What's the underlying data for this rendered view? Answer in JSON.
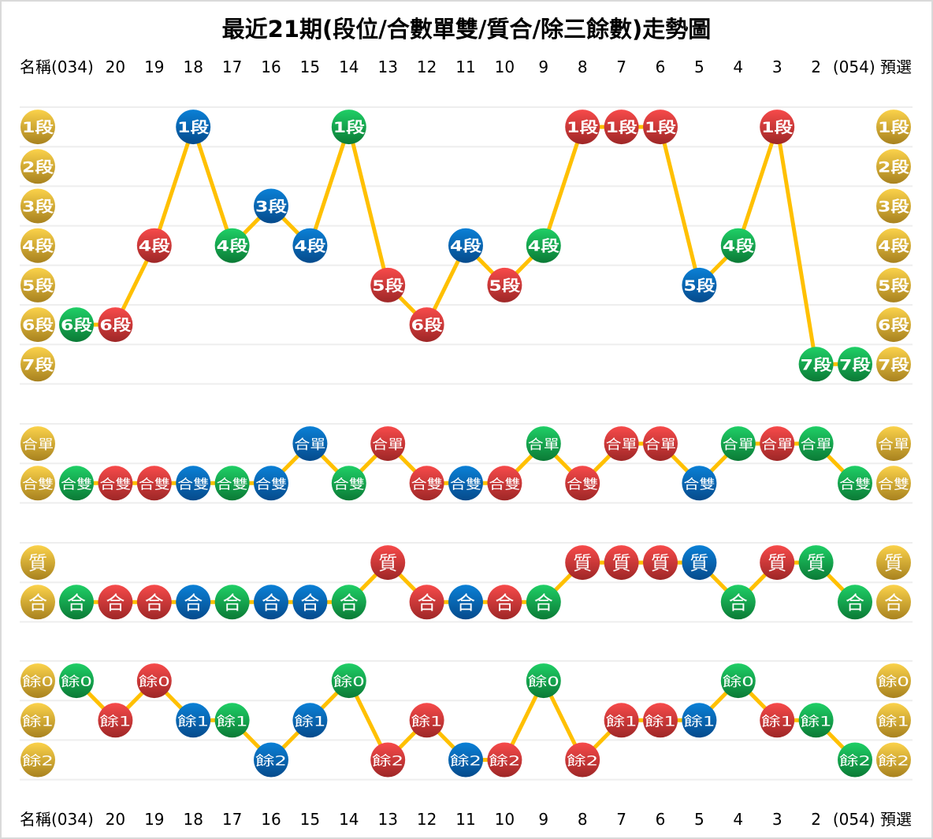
{
  "chart_data": {
    "type": "trend-chart",
    "title": "最近21期(段位/合數單雙/質合/除三餘數)走勢圖",
    "header_left": "名稱(034)",
    "header_right": "(054) 預選",
    "period_labels": [
      "20",
      "19",
      "18",
      "17",
      "16",
      "15",
      "14",
      "13",
      "12",
      "11",
      "10",
      "9",
      "8",
      "7",
      "6",
      "5",
      "4",
      "3",
      "2"
    ],
    "periods": [
      "034",
      "20",
      "19",
      "18",
      "17",
      "16",
      "15",
      "14",
      "13",
      "12",
      "11",
      "10",
      "9",
      "8",
      "7",
      "6",
      "5",
      "4",
      "3",
      "2",
      "054"
    ],
    "period_colors": [
      "green",
      "red",
      "red",
      "blue",
      "green",
      "blue",
      "blue",
      "green",
      "red",
      "red",
      "blue",
      "red",
      "green",
      "red",
      "red",
      "red",
      "blue",
      "green",
      "red",
      "green",
      "green"
    ],
    "palette": {
      "gold": [
        "#fbd24a",
        "#a8821f"
      ],
      "green": [
        "#1fcf66",
        "#0b7a36"
      ],
      "red": [
        "#f74a4a",
        "#9e2727"
      ],
      "blue": [
        "#0a80d6",
        "#064b8c"
      ],
      "line": "#ffc000",
      "grid": "#eeeeee"
    },
    "sections": [
      {
        "rows": [
          "1段",
          "2段",
          "3段",
          "4段",
          "5段",
          "6段",
          "7段"
        ],
        "values": [
          "6段",
          "6段",
          "4段",
          "1段",
          "4段",
          "3段",
          "4段",
          "1段",
          "5段",
          "6段",
          "4段",
          "5段",
          "4段",
          "1段",
          "1段",
          "1段",
          "5段",
          "4段",
          "1段",
          "7段",
          "7段"
        ]
      },
      {
        "rows": [
          "合單",
          "合雙"
        ],
        "values": [
          "合雙",
          "合雙",
          "合雙",
          "合雙",
          "合雙",
          "合雙",
          "合單",
          "合雙",
          "合單",
          "合雙",
          "合雙",
          "合雙",
          "合單",
          "合雙",
          "合單",
          "合單",
          "合雙",
          "合單",
          "合單",
          "合單",
          "合雙"
        ]
      },
      {
        "rows": [
          "質",
          "合"
        ],
        "values": [
          "合",
          "合",
          "合",
          "合",
          "合",
          "合",
          "合",
          "合",
          "質",
          "合",
          "合",
          "合",
          "合",
          "質",
          "質",
          "質",
          "質",
          "合",
          "質",
          "質",
          "合"
        ]
      },
      {
        "rows": [
          "餘0",
          "餘1",
          "餘2"
        ],
        "values": [
          "餘0",
          "餘1",
          "餘0",
          "餘1",
          "餘1",
          "餘2",
          "餘1",
          "餘0",
          "餘2",
          "餘1",
          "餘2",
          "餘2",
          "餘0",
          "餘2",
          "餘1",
          "餘1",
          "餘1",
          "餘0",
          "餘1",
          "餘1",
          "餘2"
        ]
      }
    ]
  }
}
